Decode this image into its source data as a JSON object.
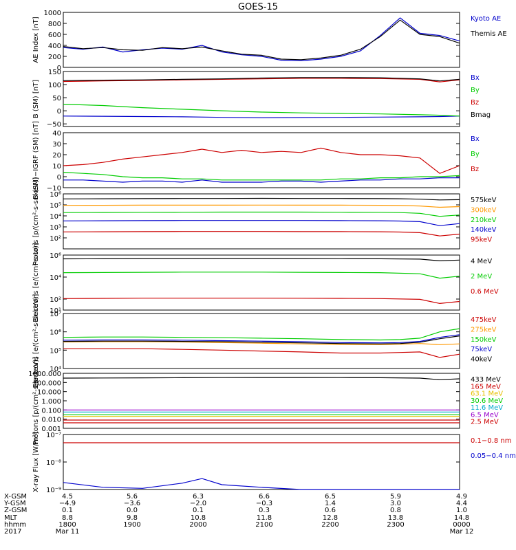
{
  "title": "GOES-15",
  "colors": {
    "black": "#000000",
    "blue": "#0000cc",
    "green": "#00cc00",
    "red": "#cc0000",
    "orange": "#ff9900",
    "yellow": "#e6c000",
    "cyan": "#00aacc",
    "purple": "#9900cc"
  },
  "chart_data": [
    {
      "type": "line",
      "panel": "ae",
      "ylabel": "AE Index [nT]",
      "ylim": [
        0,
        1000
      ],
      "scale": "linear",
      "ticks": [
        "0",
        "200",
        "400",
        "600",
        "800",
        "1000"
      ],
      "x": [
        0,
        0.05,
        0.1,
        0.15,
        0.2,
        0.25,
        0.3,
        0.35,
        0.4,
        0.45,
        0.5,
        0.55,
        0.6,
        0.65,
        0.7,
        0.75,
        0.8,
        0.85,
        0.9,
        0.95,
        1
      ],
      "series": [
        {
          "name": "Kyoto AE",
          "color": "blue",
          "values": [
            360,
            330,
            370,
            280,
            320,
            350,
            330,
            400,
            280,
            230,
            200,
            130,
            120,
            150,
            200,
            300,
            580,
            900,
            620,
            580,
            480
          ]
        },
        {
          "name": "Themis AE",
          "color": "black",
          "values": [
            380,
            340,
            360,
            320,
            310,
            360,
            340,
            370,
            300,
            240,
            220,
            150,
            140,
            170,
            220,
            330,
            560,
            860,
            600,
            560,
            440
          ]
        }
      ]
    },
    {
      "type": "line",
      "panel": "bsm",
      "ylabel": "B (SM) [nT]",
      "ylim": [
        -60,
        150
      ],
      "scale": "linear",
      "ticks": [
        "−50",
        "0",
        "50",
        "100",
        "150"
      ],
      "x": [
        0,
        0.1,
        0.2,
        0.3,
        0.4,
        0.5,
        0.6,
        0.7,
        0.8,
        0.9,
        0.95,
        1
      ],
      "series": [
        {
          "name": "Bx",
          "color": "blue",
          "values": [
            -20,
            -21,
            -22,
            -23,
            -25,
            -27,
            -26,
            -25,
            -24,
            -23,
            -22,
            -20
          ]
        },
        {
          "name": "By",
          "color": "green",
          "values": [
            25,
            20,
            12,
            6,
            0,
            -5,
            -8,
            -10,
            -12,
            -15,
            -17,
            -20
          ]
        },
        {
          "name": "Bz",
          "color": "red",
          "values": [
            112,
            114,
            116,
            118,
            120,
            122,
            124,
            124,
            123,
            120,
            110,
            118
          ]
        },
        {
          "name": "Bmag",
          "color": "black",
          "values": [
            115,
            117,
            118,
            120,
            122,
            125,
            127,
            127,
            126,
            122,
            114,
            120
          ]
        }
      ]
    },
    {
      "type": "line",
      "panel": "bdiff",
      "ylabel": "B (SM)−IGRF (SM) [nT]",
      "ylim": [
        -10,
        40
      ],
      "scale": "linear",
      "ticks": [
        "−10",
        "0",
        "10",
        "20",
        "30",
        "40"
      ],
      "x": [
        0,
        0.05,
        0.1,
        0.15,
        0.2,
        0.25,
        0.3,
        0.35,
        0.4,
        0.45,
        0.5,
        0.55,
        0.6,
        0.65,
        0.7,
        0.75,
        0.8,
        0.85,
        0.9,
        0.95,
        1
      ],
      "series": [
        {
          "name": "Bx",
          "color": "blue",
          "values": [
            -3,
            -3,
            -4,
            -5,
            -4,
            -4,
            -5,
            -3,
            -5,
            -5,
            -5,
            -4,
            -4,
            -5,
            -4,
            -3,
            -3,
            -2,
            -2,
            -1,
            -1
          ]
        },
        {
          "name": "By",
          "color": "green",
          "values": [
            4,
            3,
            2,
            0,
            -1,
            -1,
            -2,
            -2,
            -3,
            -3,
            -3,
            -3,
            -3,
            -3,
            -2,
            -2,
            -1,
            -1,
            0,
            0,
            1
          ]
        },
        {
          "name": "Bz",
          "color": "red",
          "values": [
            10,
            11,
            13,
            16,
            18,
            20,
            22,
            25,
            22,
            24,
            22,
            23,
            22,
            26,
            22,
            20,
            20,
            19,
            17,
            3,
            10
          ]
        }
      ]
    },
    {
      "type": "line",
      "panel": "protons",
      "ylabel": "Protons [p/(cm²-s-sr-keV)]",
      "ylim": [
        10,
        1000000
      ],
      "scale": "log",
      "ticks": [
        "10²",
        "10³",
        "10⁴",
        "10⁵",
        "10⁶"
      ],
      "x": [
        0,
        0.1,
        0.2,
        0.3,
        0.4,
        0.5,
        0.6,
        0.7,
        0.8,
        0.85,
        0.9,
        0.95,
        1
      ],
      "series": [
        {
          "name": "575keV",
          "color": "black",
          "values": [
            350000,
            360000,
            370000,
            380000,
            380000,
            390000,
            380000,
            380000,
            370000,
            360000,
            330000,
            280000,
            300000
          ]
        },
        {
          "name": "300keV",
          "color": "orange",
          "values": [
            90000,
            92000,
            95000,
            95000,
            95000,
            96000,
            95000,
            94000,
            92000,
            88000,
            80000,
            60000,
            70000
          ]
        },
        {
          "name": "210keV",
          "color": "green",
          "values": [
            20000,
            20500,
            21000,
            21500,
            22000,
            22000,
            22000,
            21500,
            21000,
            20000,
            17000,
            9000,
            12000
          ]
        },
        {
          "name": "140keV",
          "color": "blue",
          "values": [
            3500,
            3600,
            3700,
            3800,
            3800,
            3800,
            3800,
            3700,
            3600,
            3400,
            3000,
            1300,
            2000
          ]
        },
        {
          "name": "95keV",
          "color": "red",
          "values": [
            350,
            360,
            370,
            380,
            380,
            380,
            370,
            370,
            360,
            340,
            300,
            150,
            220
          ]
        }
      ]
    },
    {
      "type": "line",
      "panel": "electrons_mev",
      "ylabel": "Electrons [e/(cm²-s-sr)]",
      "ylim": [
        10,
        1000000
      ],
      "scale": "log",
      "ticks": [
        "10¹",
        "10²",
        "10⁴",
        "10⁶"
      ],
      "x": [
        0,
        0.1,
        0.2,
        0.3,
        0.4,
        0.5,
        0.6,
        0.7,
        0.8,
        0.9,
        0.95,
        1
      ],
      "series": [
        {
          "name": "4 MeV",
          "color": "black",
          "values": [
            450000,
            460000,
            480000,
            480000,
            490000,
            490000,
            480000,
            470000,
            460000,
            430000,
            300000,
            350000
          ]
        },
        {
          "name": "2 MeV",
          "color": "green",
          "values": [
            25000,
            26000,
            27000,
            28000,
            28000,
            28000,
            27000,
            26000,
            25000,
            20000,
            8000,
            12000
          ]
        },
        {
          "name": "0.6 MeV",
          "color": "red",
          "values": [
            110,
            115,
            120,
            120,
            120,
            120,
            118,
            115,
            110,
            95,
            40,
            60
          ]
        }
      ]
    },
    {
      "type": "line",
      "panel": "electrons_kev",
      "ylabel": "Electrons [e/(cm²-s-sr-keV)]",
      "ylim": [
        10000,
        10000000
      ],
      "scale": "log",
      "ticks": [
        "10⁴",
        "10⁵",
        "10⁶",
        "10⁷"
      ],
      "x": [
        0,
        0.1,
        0.2,
        0.3,
        0.4,
        0.5,
        0.6,
        0.7,
        0.8,
        0.85,
        0.9,
        0.95,
        1
      ],
      "series": [
        {
          "name": "475keV",
          "color": "red",
          "values": [
            120000,
            120000,
            120000,
            110000,
            100000,
            90000,
            80000,
            70000,
            70000,
            75000,
            80000,
            40000,
            60000
          ]
        },
        {
          "name": "275keV",
          "color": "orange",
          "values": [
            280000,
            290000,
            290000,
            280000,
            260000,
            240000,
            220000,
            200000,
            200000,
            210000,
            230000,
            200000,
            220000
          ]
        },
        {
          "name": "150keV",
          "color": "green",
          "values": [
            500000,
            520000,
            520000,
            500000,
            480000,
            450000,
            420000,
            380000,
            360000,
            380000,
            450000,
            1000000,
            1500000
          ]
        },
        {
          "name": "75keV",
          "color": "blue",
          "values": [
            350000,
            360000,
            360000,
            350000,
            330000,
            310000,
            290000,
            260000,
            250000,
            260000,
            300000,
            500000,
            700000
          ]
        },
        {
          "name": "40keV",
          "color": "black",
          "values": [
            300000,
            310000,
            310000,
            300000,
            290000,
            270000,
            250000,
            230000,
            220000,
            230000,
            270000,
            420000,
            600000
          ]
        }
      ]
    },
    {
      "type": "line",
      "panel": "protons_mev",
      "ylabel": "Protons [p/(cm²-s-sr-keV)]",
      "ylim": [
        0.001,
        1000
      ],
      "scale": "log",
      "ticks": [
        "0.001",
        "0.010",
        "0.100",
        "1.000",
        "10.000",
        "100.000",
        "1000.000"
      ],
      "x": [
        0,
        0.1,
        0.2,
        0.3,
        0.4,
        0.5,
        0.6,
        0.7,
        0.8,
        0.9,
        0.95,
        1
      ],
      "series": [
        {
          "name": "433 MeV",
          "color": "black",
          "values": [
            300,
            310,
            320,
            330,
            340,
            350,
            350,
            340,
            330,
            300,
            200,
            250
          ]
        },
        {
          "name": "165 MeV",
          "color": "red",
          "values": [
            0.004,
            0.004,
            0.004,
            0.004,
            0.004,
            0.004,
            0.004,
            0.004,
            0.004,
            0.004,
            0.004,
            0.004
          ]
        },
        {
          "name": "63.1 MeV",
          "color": "yellow",
          "values": [
            0.02,
            0.02,
            0.02,
            0.02,
            0.02,
            0.02,
            0.02,
            0.02,
            0.02,
            0.02,
            0.02,
            0.02
          ]
        },
        {
          "name": "30.6 MeV",
          "color": "green",
          "values": [
            0.03,
            0.03,
            0.03,
            0.03,
            0.03,
            0.03,
            0.03,
            0.03,
            0.03,
            0.03,
            0.03,
            0.03
          ]
        },
        {
          "name": "11.6 MeV",
          "color": "cyan",
          "values": [
            0.06,
            0.06,
            0.06,
            0.06,
            0.06,
            0.06,
            0.06,
            0.06,
            0.06,
            0.06,
            0.06,
            0.06
          ]
        },
        {
          "name": "6.5 MeV",
          "color": "purple",
          "values": [
            0.1,
            0.1,
            0.1,
            0.1,
            0.1,
            0.1,
            0.1,
            0.1,
            0.1,
            0.1,
            0.1,
            0.1
          ]
        },
        {
          "name": "2.5 MeV",
          "color": "red",
          "values": [
            0.008,
            0.008,
            0.008,
            0.008,
            0.008,
            0.008,
            0.008,
            0.008,
            0.008,
            0.008,
            0.008,
            0.008
          ]
        }
      ]
    },
    {
      "type": "line",
      "panel": "xray",
      "ylabel": "X-ray Flux [W/m²]",
      "ylim": [
        1e-09,
        1e-07
      ],
      "scale": "log",
      "ticks": [
        "10⁻⁹",
        "10⁻⁸",
        "10⁻⁷"
      ],
      "x": [
        0,
        0.1,
        0.2,
        0.3,
        0.35,
        0.4,
        0.5,
        0.6,
        0.7,
        0.8,
        0.9,
        1
      ],
      "series": [
        {
          "name": "0.1−0.8 nm",
          "color": "red",
          "values": [
            5e-08,
            5e-08,
            5e-08,
            5e-08,
            5e-08,
            5e-08,
            5e-08,
            5e-08,
            5e-08,
            5e-08,
            5e-08,
            5e-08
          ]
        },
        {
          "name": "0.05−0.4 nm",
          "color": "blue",
          "values": [
            1.8e-09,
            1.2e-09,
            1.1e-09,
            1.7e-09,
            2.5e-09,
            1.5e-09,
            1.2e-09,
            1e-09,
            1e-09,
            1e-09,
            1e-09,
            1e-09
          ]
        }
      ]
    }
  ],
  "footer": {
    "rows": [
      {
        "label": "X-GSM",
        "values": [
          "4.5",
          "5.6",
          "6.3",
          "6.6",
          "6.5",
          "5.9",
          "4.9"
        ]
      },
      {
        "label": "Y-GSM",
        "values": [
          "−4.9",
          "−3.6",
          "−2.0",
          "−0.3",
          "1.4",
          "3.0",
          "4.4"
        ]
      },
      {
        "label": "Z-GSM",
        "values": [
          "0.1",
          "0.0",
          "0.1",
          "0.3",
          "0.6",
          "0.8",
          "1.0"
        ]
      },
      {
        "label": "MLT",
        "values": [
          "8.8",
          "9.8",
          "10.8",
          "11.8",
          "12.8",
          "13.8",
          "14.8"
        ]
      },
      {
        "label": "hhmm",
        "values": [
          "1800",
          "1900",
          "2000",
          "2100",
          "2200",
          "2300",
          "0000"
        ]
      },
      {
        "label": "2017",
        "values": [
          "Mar 11",
          "",
          "",
          "",
          "",
          "",
          "Mar 12"
        ]
      }
    ]
  }
}
